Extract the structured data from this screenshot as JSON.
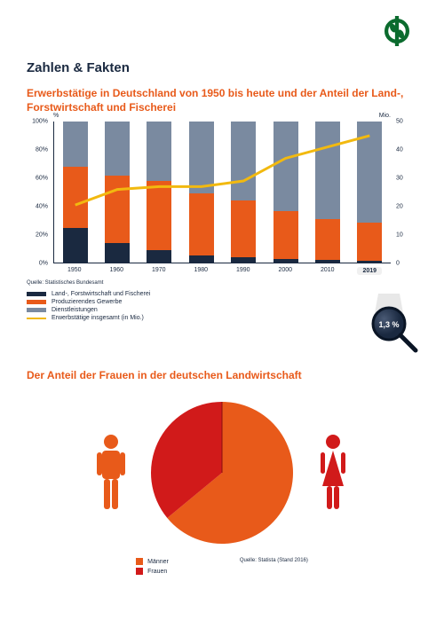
{
  "logo": {
    "stroke": "#0b6b2e",
    "fill_dark": "#0b6b2e"
  },
  "page_title": "Zahlen & Fakten",
  "chart1": {
    "type": "stacked-bar+line",
    "title": "Erwerbstätige in Deutschland von 1950 bis heute und der Anteil der Land-, Forstwirtschaft und Fischerei",
    "x_categories": [
      "1950",
      "1960",
      "1970",
      "1980",
      "1990",
      "2000",
      "2010",
      "2019"
    ],
    "x_highlight_index": 7,
    "left_axis": {
      "unit": "%",
      "min": 0,
      "max": 100,
      "ticks": [
        0,
        20,
        40,
        60,
        80,
        100
      ]
    },
    "right_axis": {
      "unit": "Mio.",
      "min": 0,
      "max": 50,
      "ticks": [
        0,
        10,
        20,
        30,
        40,
        50
      ]
    },
    "colors": {
      "agri": "#1a2940",
      "industry": "#e85a1a",
      "services": "#7a8aa0",
      "line": "#f2b90f",
      "grid": "#ffffff",
      "axis": "#1a2940"
    },
    "series_pct": {
      "agri": [
        25,
        14,
        9,
        5,
        4,
        3,
        2,
        1.3
      ],
      "industry": [
        43,
        48,
        49,
        44,
        40,
        34,
        29,
        27
      ],
      "services": [
        32,
        38,
        42,
        51,
        56,
        63,
        69,
        71.7
      ]
    },
    "line_millions": [
      20.5,
      26,
      27,
      27,
      29,
      37,
      41,
      45
    ],
    "legend": [
      {
        "key": "agri",
        "label": "Land-, Forstwirtschaft und Fischerei",
        "swatch": "#1a2940"
      },
      {
        "key": "industry",
        "label": "Produzierendes Gewerbe",
        "swatch": "#e85a1a"
      },
      {
        "key": "services",
        "label": "Dienstleistungen",
        "swatch": "#7a8aa0"
      },
      {
        "key": "line",
        "label": "Erwerbstätige insgesamt (in Mio.)",
        "swatch": "#f2b90f",
        "is_line": true
      }
    ],
    "source": "Quelle: Statistisches Bundesamt",
    "callout": {
      "text": "1,3 %",
      "bg": "#1a2940",
      "fg": "#ffffff"
    }
  },
  "chart2": {
    "type": "pie",
    "title": "Der Anteil der Frauen in der deutschen Landwirtschaft",
    "slices": [
      {
        "label": "Männer",
        "value": 64,
        "color": "#e85a1a"
      },
      {
        "label": "Frauen",
        "value": 36,
        "color": "#d11a1a"
      }
    ],
    "icon_male_color": "#e85a1a",
    "icon_female_color": "#d11a1a",
    "legend": [
      {
        "label": "Männer",
        "color": "#e85a1a"
      },
      {
        "label": "Frauen",
        "color": "#d11a1a"
      }
    ],
    "source": "Quelle: Statista (Stand 2016)"
  }
}
